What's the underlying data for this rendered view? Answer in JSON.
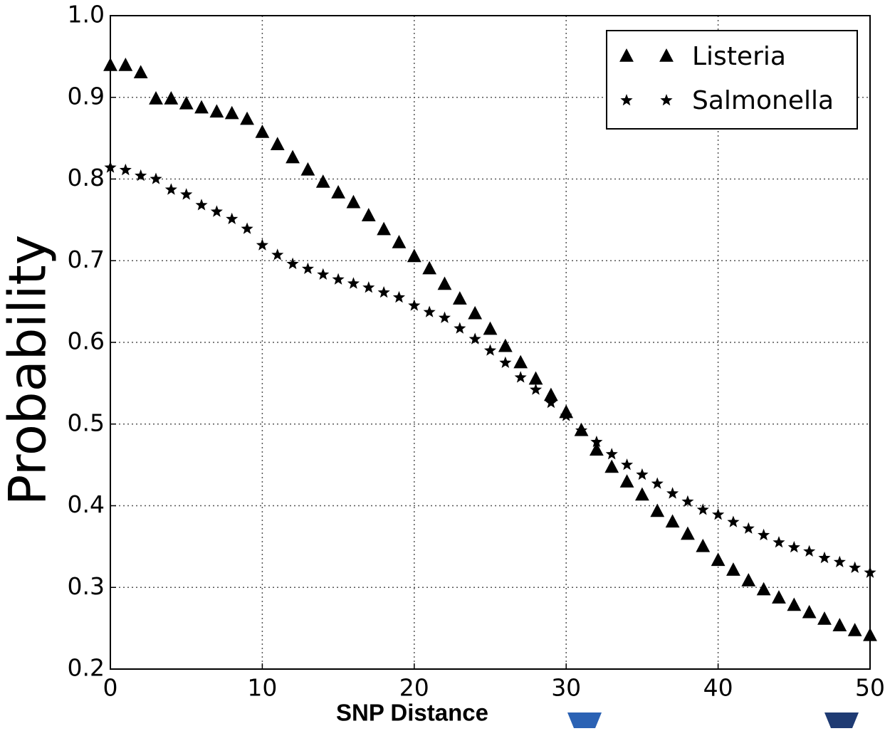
{
  "chart_data": {
    "type": "scatter",
    "x_label": "SNP Distance",
    "y_label": "Probability",
    "x": [
      0,
      1,
      2,
      3,
      4,
      5,
      6,
      7,
      8,
      9,
      10,
      11,
      12,
      13,
      14,
      15,
      16,
      17,
      18,
      19,
      20,
      21,
      22,
      23,
      24,
      25,
      26,
      27,
      28,
      29,
      30,
      31,
      32,
      33,
      34,
      35,
      36,
      37,
      38,
      39,
      40,
      41,
      42,
      43,
      44,
      45,
      46,
      47,
      48,
      49,
      50
    ],
    "series": [
      {
        "name": "Listeria",
        "color": "#000000",
        "marker": "triangle",
        "values": [
          0.939,
          0.939,
          0.93,
          0.898,
          0.898,
          0.892,
          0.887,
          0.882,
          0.88,
          0.873,
          0.857,
          0.842,
          0.826,
          0.811,
          0.796,
          0.783,
          0.771,
          0.755,
          0.738,
          0.722,
          0.705,
          0.69,
          0.671,
          0.653,
          0.635,
          0.616,
          0.595,
          0.575,
          0.555,
          0.535,
          0.514,
          0.492,
          0.468,
          0.447,
          0.429,
          0.413,
          0.393,
          0.38,
          0.365,
          0.35,
          0.333,
          0.321,
          0.308,
          0.297,
          0.287,
          0.278,
          0.269,
          0.261,
          0.253,
          0.247,
          0.241
        ]
      },
      {
        "name": "Salmonella",
        "color": "#000000",
        "marker": "star",
        "values": [
          0.814,
          0.811,
          0.804,
          0.8,
          0.787,
          0.781,
          0.768,
          0.76,
          0.751,
          0.739,
          0.719,
          0.707,
          0.696,
          0.69,
          0.683,
          0.677,
          0.672,
          0.667,
          0.661,
          0.655,
          0.645,
          0.637,
          0.63,
          0.617,
          0.604,
          0.59,
          0.575,
          0.557,
          0.542,
          0.526,
          0.51,
          0.492,
          0.478,
          0.463,
          0.45,
          0.438,
          0.427,
          0.415,
          0.405,
          0.395,
          0.389,
          0.38,
          0.372,
          0.364,
          0.355,
          0.349,
          0.344,
          0.336,
          0.331,
          0.324,
          0.318
        ]
      }
    ],
    "xlim": [
      0,
      50
    ],
    "xticks": [
      0,
      10,
      20,
      30,
      40,
      50
    ],
    "ylim": [
      0.2,
      1
    ],
    "yticks": [
      0.2,
      0.3,
      0.4,
      0.5,
      0.6,
      0.7,
      0.8,
      0.9,
      {
        "value": 1,
        "label": "1.0"
      }
    ],
    "grid": true,
    "legend": "upper right"
  }
}
